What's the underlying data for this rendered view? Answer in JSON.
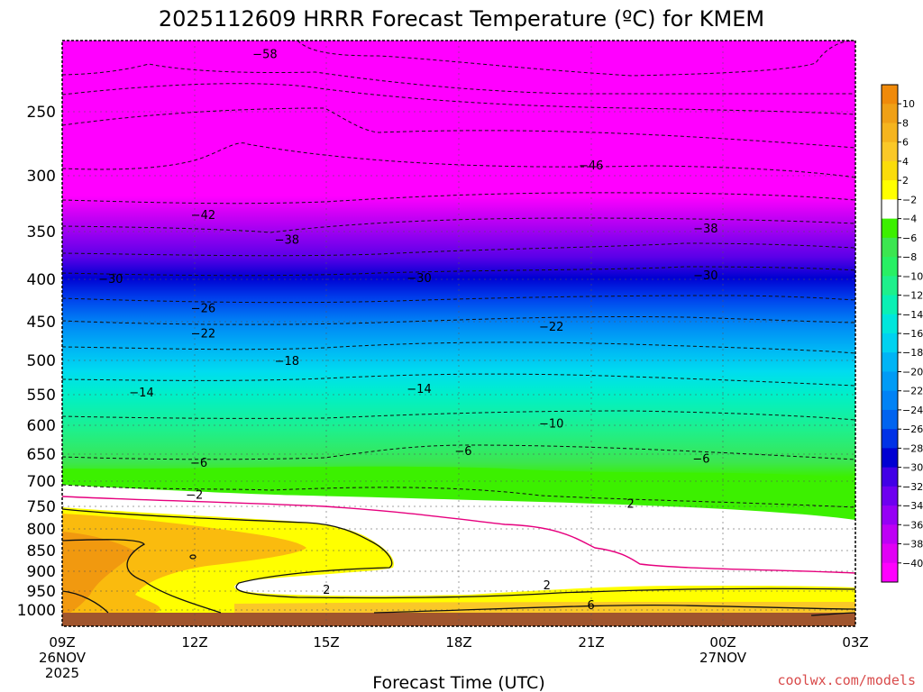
{
  "chart_data": {
    "type": "heatmap",
    "title": "2025112609 HRRR Forecast Temperature (ºC) for KMEM",
    "xlabel": "Forecast Time (UTC)",
    "ylabel": "",
    "y_scale": "log-pressure, inverted",
    "ylim_hpa": [
      1050,
      200
    ],
    "y_ticks": [
      "250",
      "300",
      "350",
      "400",
      "450",
      "500",
      "550",
      "600",
      "650",
      "700",
      "750",
      "800",
      "850",
      "900",
      "950",
      "1000"
    ],
    "x_ticks": [
      {
        "label": "09Z",
        "sub1": "26NOV",
        "sub2": "2025"
      },
      {
        "label": "12Z",
        "sub1": "",
        "sub2": ""
      },
      {
        "label": "15Z",
        "sub1": "",
        "sub2": ""
      },
      {
        "label": "18Z",
        "sub1": "",
        "sub2": ""
      },
      {
        "label": "21Z",
        "sub1": "",
        "sub2": ""
      },
      {
        "label": "00Z",
        "sub1": "27NOV",
        "sub2": ""
      },
      {
        "label": "03Z",
        "sub1": "",
        "sub2": ""
      }
    ],
    "forecast_hours": [
      0,
      3,
      6,
      9,
      12,
      15,
      18
    ],
    "colorbar": {
      "labels": [
        "10",
        "8",
        "6",
        "4",
        "2",
        "-2",
        "-4",
        "-6",
        "-8",
        "-10",
        "-12",
        "-14",
        "-16",
        "-18",
        "-20",
        "-22",
        "-24",
        "-26",
        "-28",
        "-30",
        "-32",
        "-34",
        "-36",
        "-38",
        "-40"
      ],
      "colors": [
        "#f08a0a",
        "#f0a016",
        "#f5b41e",
        "#fac828",
        "#fadc0a",
        "#ffff00",
        "#ffffff",
        "#3cf000",
        "#3ce650",
        "#28f064",
        "#1ef08c",
        "#0af0b4",
        "#00e6dc",
        "#00d2f0",
        "#00b4f5",
        "#009bf5",
        "#0082f5",
        "#0064f0",
        "#0032e6",
        "#0000d2",
        "#4100e6",
        "#6e00f0",
        "#9600f5",
        "#be00f5",
        "#e100f5",
        "#ff00ff"
      ],
      "grid": "dotted"
    },
    "contour_labels": [
      {
        "level": -58,
        "x_hr": 4.6,
        "p": 208
      },
      {
        "level": -46,
        "x_hr": 12.0,
        "p": 285
      },
      {
        "level": -42,
        "x_hr": 3.2,
        "p": 328
      },
      {
        "level": -38,
        "x_hr": 5.1,
        "p": 352
      },
      {
        "level": -38,
        "x_hr": 14.6,
        "p": 341
      },
      {
        "level": -30,
        "x_hr": 1.1,
        "p": 393
      },
      {
        "level": -30,
        "x_hr": 8.1,
        "p": 392
      },
      {
        "level": -30,
        "x_hr": 14.6,
        "p": 389
      },
      {
        "level": -26,
        "x_hr": 3.2,
        "p": 427
      },
      {
        "level": -22,
        "x_hr": 3.2,
        "p": 459
      },
      {
        "level": -22,
        "x_hr": 11.1,
        "p": 450
      },
      {
        "level": -18,
        "x_hr": 5.1,
        "p": 496
      },
      {
        "level": -14,
        "x_hr": 1.8,
        "p": 542
      },
      {
        "level": -14,
        "x_hr": 8.1,
        "p": 537
      },
      {
        "level": -10,
        "x_hr": 11.1,
        "p": 592
      },
      {
        "level": -6,
        "x_hr": 3.1,
        "p": 662
      },
      {
        "level": -6,
        "x_hr": 9.1,
        "p": 640
      },
      {
        "level": -6,
        "x_hr": 14.5,
        "p": 654
      },
      {
        "level": -2,
        "x_hr": 3.0,
        "p": 724
      },
      {
        "level": 2,
        "x_hr": 12.9,
        "p": 743
      },
      {
        "level": 2,
        "x_hr": 6.0,
        "p": 948
      },
      {
        "level": 2,
        "x_hr": 11.0,
        "p": 936
      },
      {
        "level": 6,
        "x_hr": 12.0,
        "p": 990
      }
    ]
  },
  "credit": "coolwx.com/models"
}
